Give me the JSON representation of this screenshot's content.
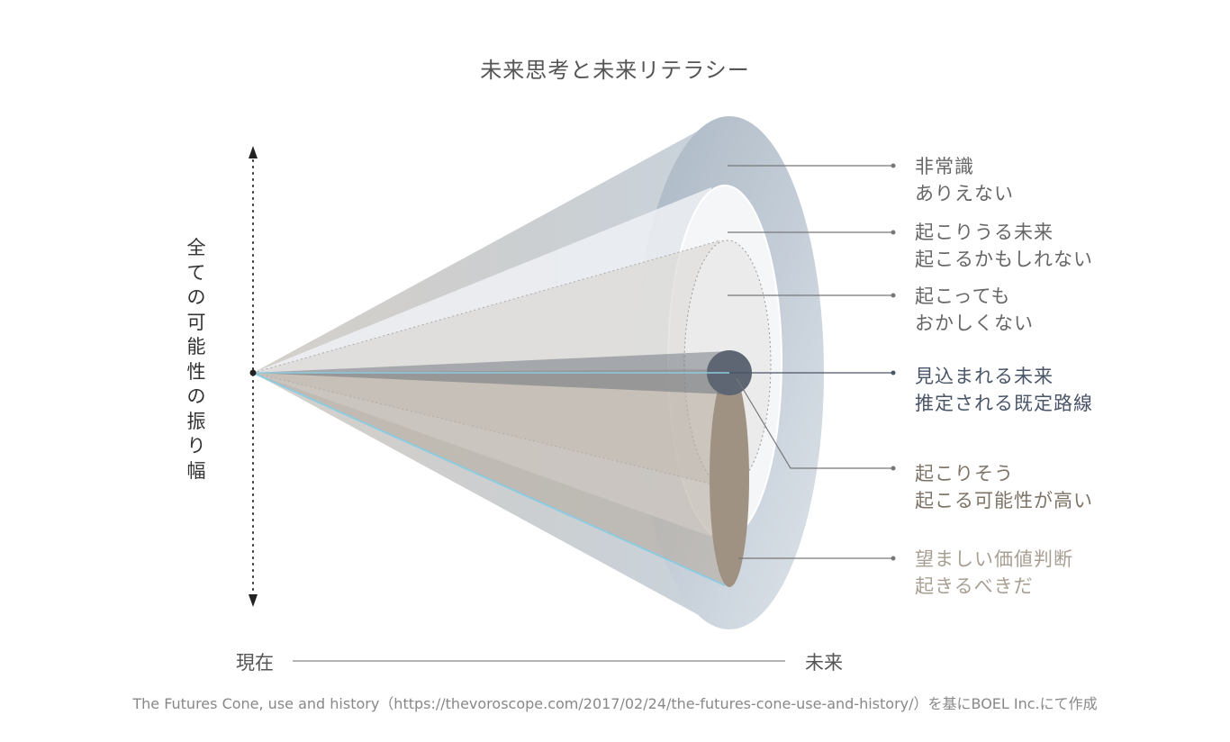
{
  "title": "未来思考と未来リテラシー",
  "y_axis_label": "全ての可能性の振り幅",
  "x_axis": {
    "start": "現在",
    "end": "未来"
  },
  "labels": [
    {
      "line1": "非常識",
      "line2": "ありえない",
      "color": "#666666"
    },
    {
      "line1": "起こりうる未来",
      "line2": "起こるかもしれない",
      "color": "#666666"
    },
    {
      "line1": "起こっても",
      "line2": "おかしくない",
      "color": "#666666"
    },
    {
      "line1": "見込まれる未来",
      "line2": "推定される既定路線",
      "color": "#4a5568"
    },
    {
      "line1": "起こりそう",
      "line2": "起こる可能性が高い",
      "color": "#7d7366"
    },
    {
      "line1": "望ましい価値判断",
      "line2": "起きるべきだ",
      "color": "#a89f93"
    }
  ],
  "footer": "The Futures Cone, use and history（https://thevoroscope.com/2017/02/24/the-futures-cone-use-and-history/）を基にBOEL Inc.にて作成"
}
